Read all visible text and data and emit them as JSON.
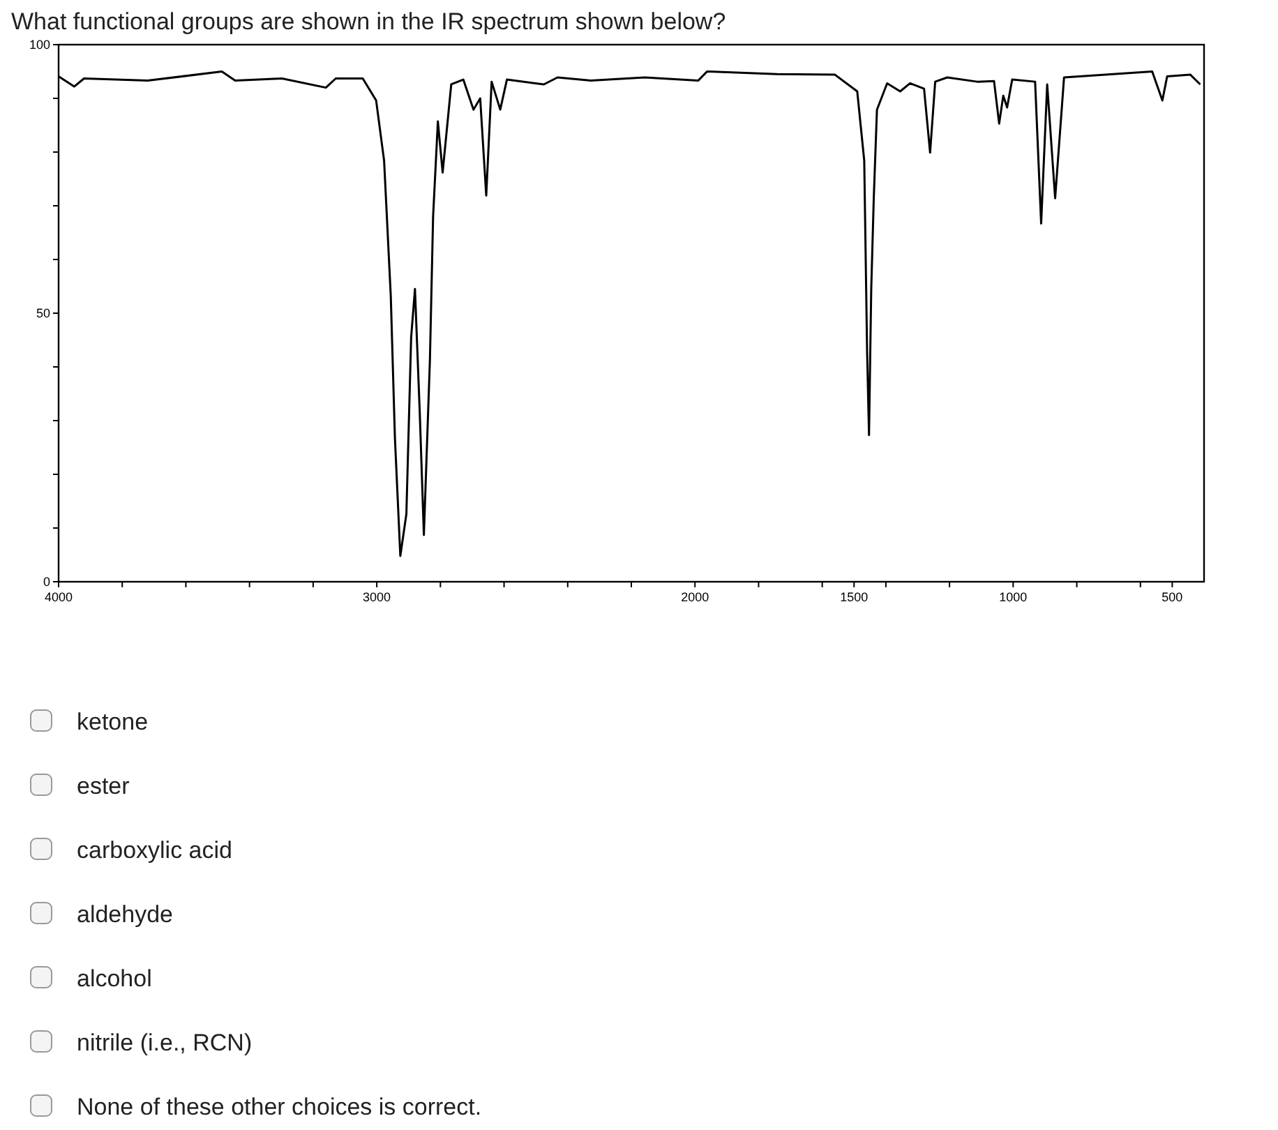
{
  "chart_data": {
    "type": "line",
    "title": "What functional groups are shown in the IR spectrum shown below?",
    "x": [
      4000,
      3951,
      3920,
      3720,
      3487,
      3445,
      3298,
      3160,
      3129,
      3044,
      3002,
      2977,
      2956,
      2943,
      2926,
      2907,
      2892,
      2880,
      2865,
      2852,
      2833,
      2823,
      2808,
      2793,
      2766,
      2728,
      2696,
      2675,
      2656,
      2639,
      2612,
      2591,
      2475,
      2432,
      2327,
      2158,
      1990,
      1962,
      1742,
      1560,
      1490,
      1468,
      1459,
      1453,
      1446,
      1438,
      1428,
      1396,
      1355,
      1324,
      1280,
      1261,
      1245,
      1207,
      1113,
      1060,
      1044,
      1031,
      1019,
      1003,
      931,
      912,
      893,
      868,
      840,
      563,
      531,
      516,
      443,
      412
    ],
    "series": [
      {
        "color": "#000000",
        "values": [
          94.1,
          92.2,
          93.7,
          93.3,
          95.0,
          93.3,
          93.7,
          92.0,
          93.7,
          93.7,
          89.6,
          78.4,
          53.2,
          26.8,
          4.8,
          12.6,
          45.5,
          54.5,
          31.6,
          8.7,
          41.3,
          68.0,
          85.7,
          76.2,
          92.6,
          93.5,
          87.9,
          90.0,
          71.9,
          93.1,
          87.9,
          93.5,
          92.6,
          93.9,
          93.3,
          93.9,
          93.3,
          95.0,
          94.5,
          94.4,
          91.3,
          78.4,
          42.9,
          27.3,
          54.5,
          71.5,
          87.9,
          92.8,
          91.3,
          92.8,
          91.8,
          79.9,
          93.1,
          93.9,
          93.1,
          93.2,
          85.3,
          90.5,
          88.3,
          93.5,
          93.1,
          66.7,
          92.6,
          71.4,
          93.9,
          95.0,
          89.6,
          94.1,
          94.4,
          92.6
        ]
      }
    ],
    "xlim": [
      4000,
      400
    ],
    "xticks": [
      4000,
      {
        "value": 3800,
        "label": null
      },
      {
        "value": 3600,
        "label": null
      },
      {
        "value": 3400,
        "label": null
      },
      {
        "value": 3200,
        "label": null
      },
      3000,
      {
        "value": 2800,
        "label": null
      },
      {
        "value": 2600,
        "label": null
      },
      {
        "value": 2400,
        "label": null
      },
      {
        "value": 2200,
        "label": null
      },
      2000,
      {
        "value": 1800,
        "label": null
      },
      {
        "value": 1600,
        "label": null
      },
      1500,
      {
        "value": 1400,
        "label": null
      },
      {
        "value": 1200,
        "label": null
      },
      1000,
      {
        "value": 800,
        "label": null
      },
      {
        "value": 600,
        "label": null
      },
      500
    ],
    "ylim": [
      0,
      100
    ],
    "yticks": [
      0,
      {
        "value": 10,
        "label": null
      },
      {
        "value": 20,
        "label": null
      },
      {
        "value": 30,
        "label": null
      },
      {
        "value": 40,
        "label": null
      },
      50,
      {
        "value": 60,
        "label": null
      },
      {
        "value": 70,
        "label": null
      },
      {
        "value": 80,
        "label": null
      },
      {
        "value": 90,
        "label": null
      },
      100
    ],
    "grid": false,
    "marker": "none",
    "line_style": "solid",
    "annotations": [
      "ketone",
      "ester",
      "carboxylic acid",
      "aldehyde",
      "alcohol",
      "nitrile (i.e., RCN)",
      "None of these other choices is correct."
    ]
  }
}
